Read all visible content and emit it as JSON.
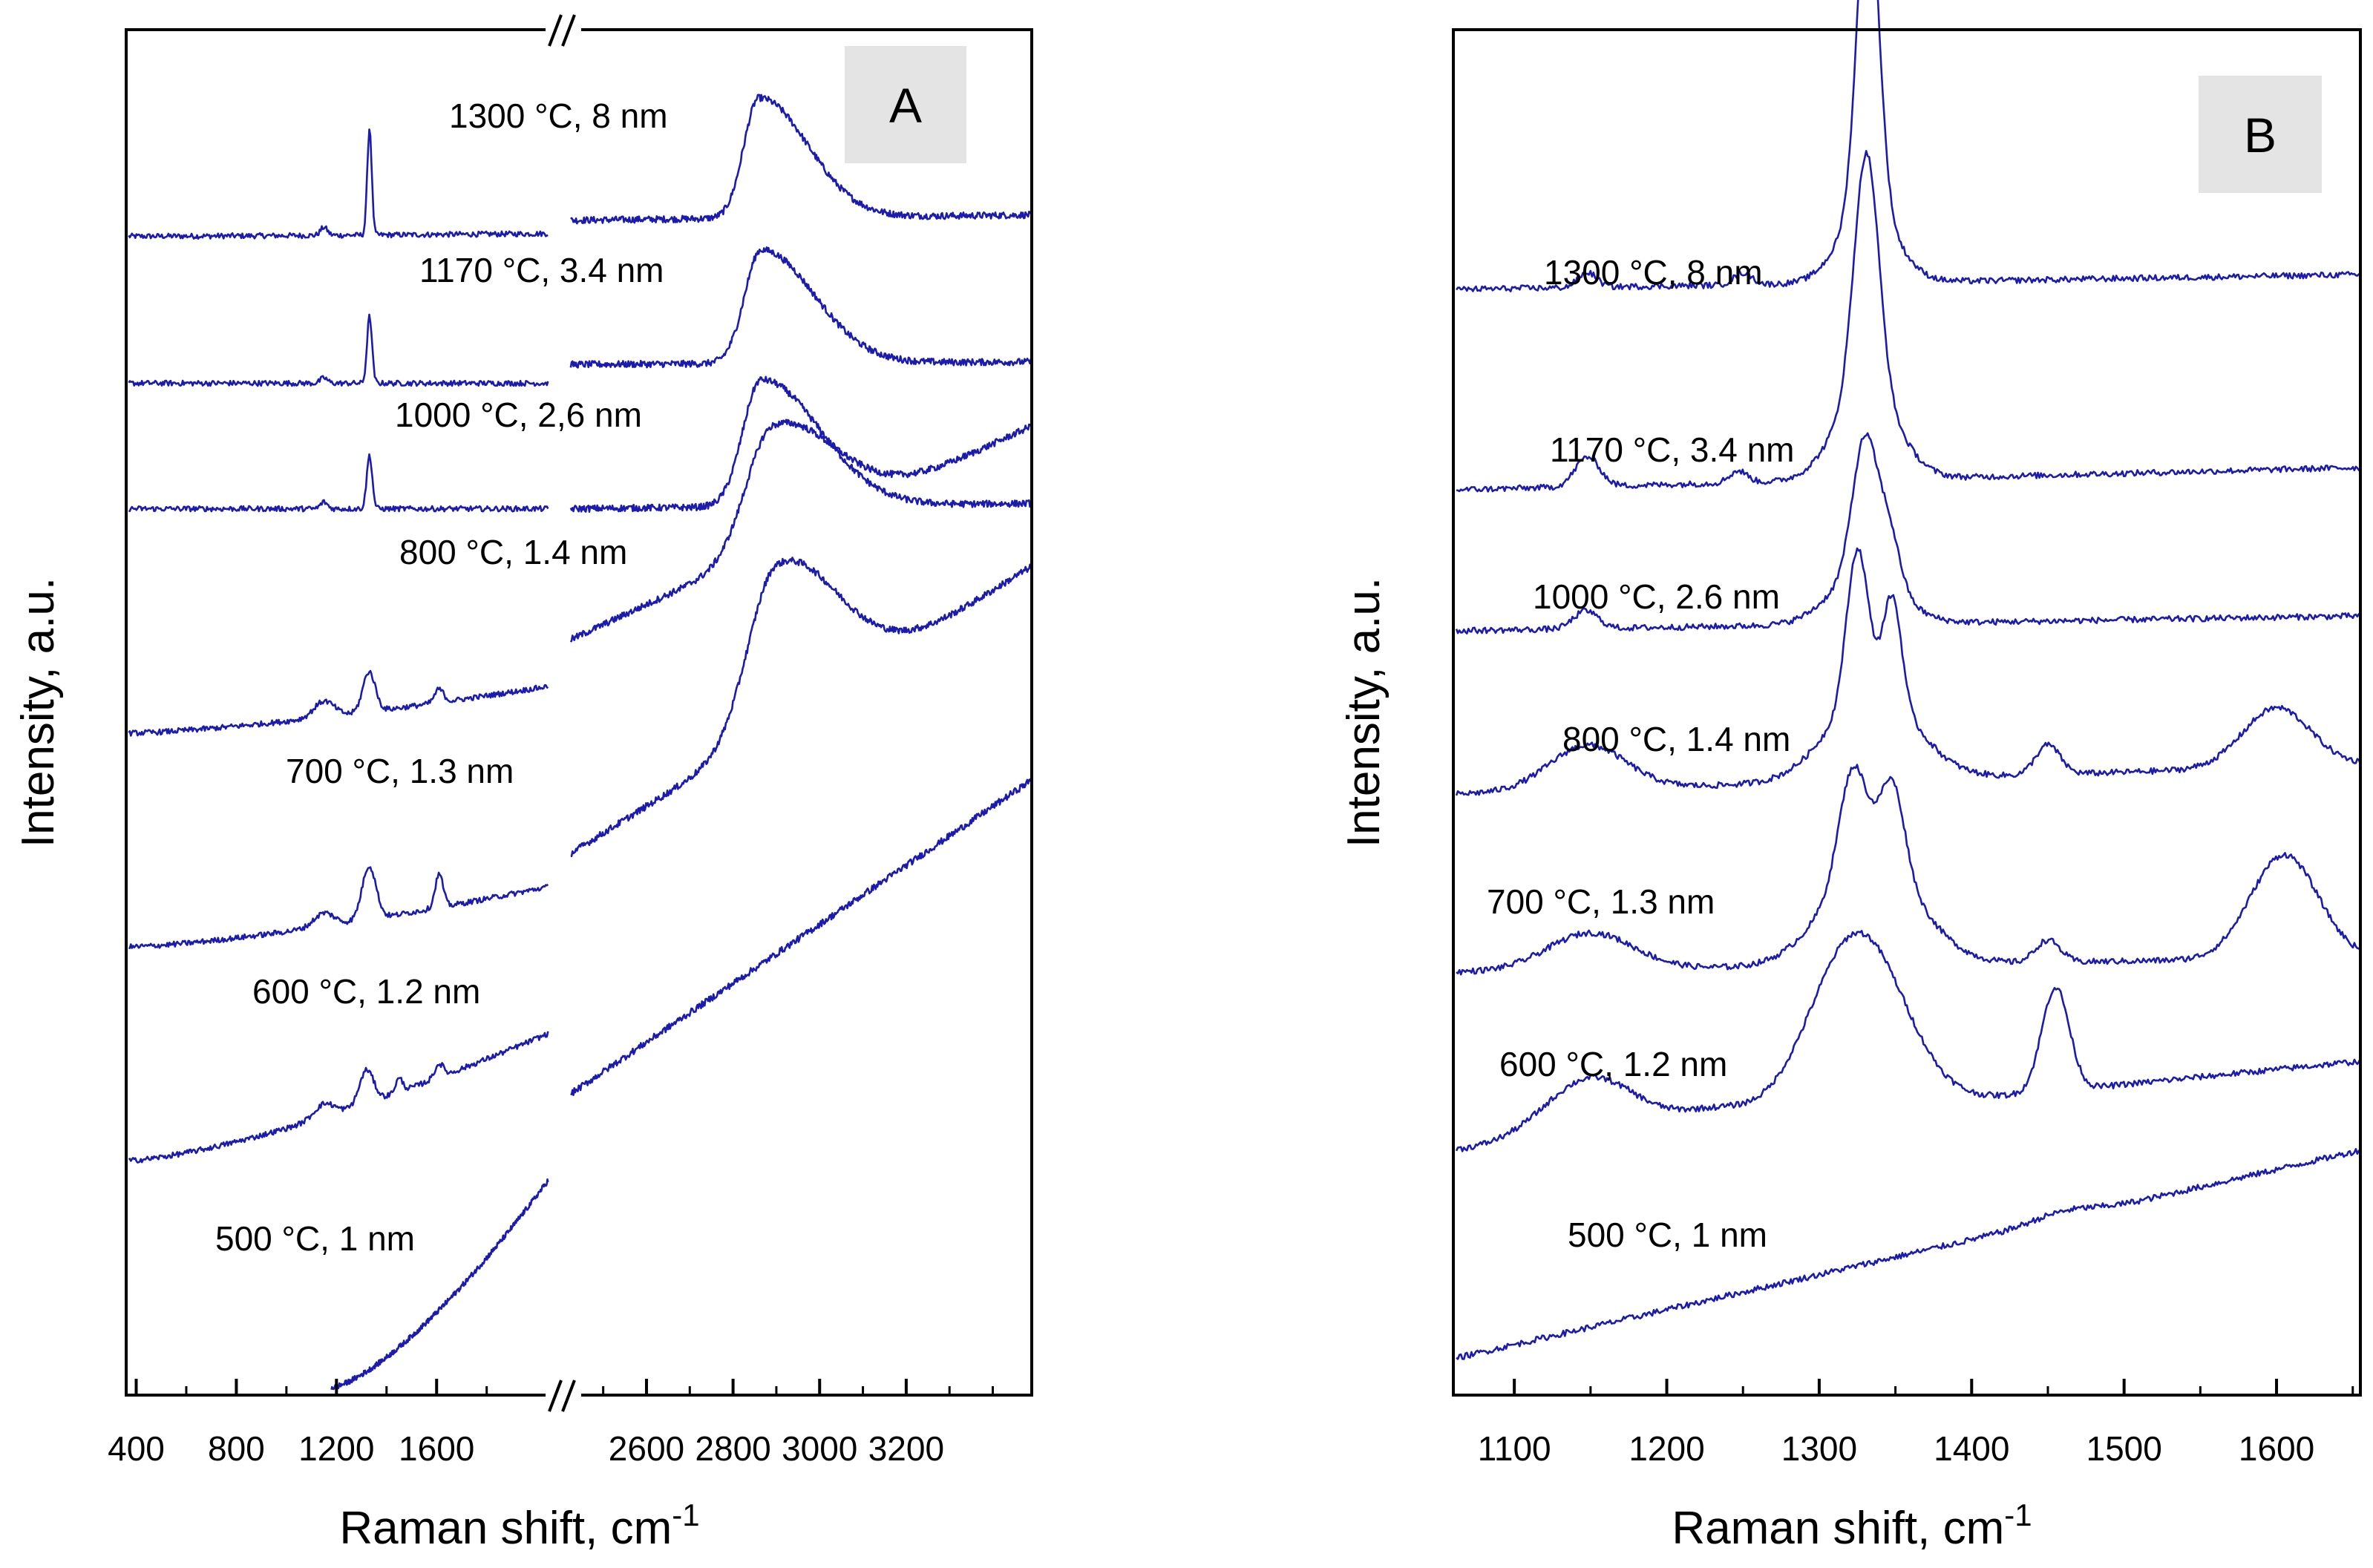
{
  "chart_data": [
    {
      "type": "line",
      "panel_label": "A",
      "xlabel": "Raman shift, cm",
      "xlabel_sup": "-1",
      "ylabel": "Intensity, a.u.",
      "axis_break": {
        "from": 2050,
        "to": 2420
      },
      "xlim": [
        360,
        3490
      ],
      "xticks": [
        400,
        800,
        1200,
        1600,
        2600,
        2800,
        3000,
        3200
      ],
      "xtick_labels": [
        "400",
        "800",
        "1200",
        "1600",
        "2600",
        "2800",
        "3000",
        "3200"
      ],
      "yticks_shown": false,
      "series": [
        {
          "name": "1300 °C, 8 nm",
          "label": "1300 °C, 8 nm",
          "offset": 0.86,
          "peaks_left": [
            {
              "x": 1332,
              "h": 0.08,
              "w": 9
            },
            {
              "x": 1150,
              "h": 0.006,
              "w": 14
            }
          ],
          "baseline_left": [
            0.862,
            0.864
          ],
          "right_start": 0.874,
          "right_end": 0.878,
          "peaks_right": [
            {
              "x": 2860,
              "h": 0.09,
              "w": 35,
              "skew": 1
            }
          ]
        },
        {
          "name": "1170 °C, 3.4 nm",
          "label": "1170 °C, 3.4 nm",
          "offset": 0.75,
          "peaks_left": [
            {
              "x": 1332,
              "h": 0.05,
              "w": 10
            },
            {
              "x": 1150,
              "h": 0.004,
              "w": 14
            }
          ],
          "baseline_left": [
            0.752,
            0.752
          ],
          "right_start": 0.766,
          "right_end": 0.768,
          "peaks_right": [
            {
              "x": 2865,
              "h": 0.085,
              "w": 38,
              "skew": 1
            }
          ]
        },
        {
          "name": "1000 °C, 2,6 nm",
          "label": "1000 °C, 2,6 nm",
          "offset": 0.66,
          "peaks_left": [
            {
              "x": 1332,
              "h": 0.04,
              "w": 11
            },
            {
              "x": 1150,
              "h": 0.005,
              "w": 14
            }
          ],
          "baseline_left": [
            0.658,
            0.658
          ],
          "right_start": 0.658,
          "right_end": 0.662,
          "peaks_right": [
            {
              "x": 2865,
              "h": 0.095,
              "w": 42,
              "skew": 1
            }
          ]
        },
        {
          "name": "800 °C, 1.4 nm",
          "label": "800 °C, 1.4 nm",
          "offset": 0.49,
          "peaks_left": [
            {
              "x": 1330,
              "h": 0.03,
              "w": 25
            },
            {
              "x": 1610,
              "h": 0.01,
              "w": 18
            },
            {
              "x": 1150,
              "h": 0.012,
              "w": 40
            }
          ],
          "baseline_left": [
            0.49,
            0.525
          ],
          "right_start": 0.56,
          "right_end": 0.72,
          "peaks_right": [
            {
              "x": 2890,
              "h": 0.09,
              "w": 60,
              "skew": 0.6
            }
          ]
        },
        {
          "name": "700 °C, 1.3 nm",
          "label": "700 °C, 1.3 nm",
          "offset": 0.33,
          "peaks_left": [
            {
              "x": 1330,
              "h": 0.04,
              "w": 28
            },
            {
              "x": 1610,
              "h": 0.025,
              "w": 16
            },
            {
              "x": 1150,
              "h": 0.01,
              "w": 40
            }
          ],
          "baseline_left": [
            0.33,
            0.375
          ],
          "right_start": 0.4,
          "right_end": 0.615,
          "peaks_right": [
            {
              "x": 2900,
              "h": 0.12,
              "w": 65,
              "skew": 0.5
            }
          ]
        },
        {
          "name": "600 °C, 1.2 nm",
          "label": "600 °C, 1.2 nm",
          "offset": 0.17,
          "peaks_left": [
            {
              "x": 1320,
              "h": 0.025,
              "w": 28
            },
            {
              "x": 1610,
              "h": 0.01,
              "w": 18
            },
            {
              "x": 1450,
              "h": 0.01,
              "w": 15
            },
            {
              "x": 1150,
              "h": 0.01,
              "w": 40
            }
          ],
          "baseline_left": [
            0.17,
            0.265
          ],
          "right_start": 0.22,
          "right_end": 0.455,
          "peaks_right": []
        },
        {
          "name": "500 °C, 1 nm",
          "label": "500 °C, 1 nm",
          "offset": 0.0,
          "peaks_left": [],
          "baseline_left": [
            0.0,
            0.155
          ],
          "left_start_x": 1180,
          "right_start": null,
          "right_end": null,
          "peaks_right": []
        }
      ]
    },
    {
      "type": "line",
      "panel_label": "B",
      "xlabel": "Raman shift, cm",
      "xlabel_sup": "-1",
      "ylabel": "Intensity, a.u.",
      "xlim": [
        1060,
        1655
      ],
      "xticks": [
        1100,
        1200,
        1300,
        1400,
        1500,
        1600
      ],
      "xtick_labels": [
        "1100",
        "1200",
        "1300",
        "1400",
        "1500",
        "1600"
      ],
      "yticks_shown": false,
      "series": [
        {
          "name": "1300 °C, 8 nm",
          "label": "1300 °C, 8 nm",
          "baseline": [
            0.72,
            0.73
          ],
          "peaks": [
            {
              "x": 1332,
              "h": 0.22,
              "w": 7
            },
            {
              "x": 1332,
              "h": 0.05,
              "w": 18
            },
            {
              "x": 1148,
              "h": 0.01,
              "w": 6
            },
            {
              "x": 1250,
              "h": 0.008,
              "w": 6
            }
          ]
        },
        {
          "name": "1170 °C, 3.4 nm",
          "label": "1170 °C, 3.4 nm",
          "baseline": [
            0.585,
            0.6
          ],
          "peaks": [
            {
              "x": 1331,
              "h": 0.16,
              "w": 8
            },
            {
              "x": 1331,
              "h": 0.06,
              "w": 20
            },
            {
              "x": 1148,
              "h": 0.02,
              "w": 8
            },
            {
              "x": 1247,
              "h": 0.008,
              "w": 6
            }
          ]
        },
        {
          "name": "1000 °C, 2.6 nm",
          "label": "1000 °C, 2.6 nm",
          "baseline": [
            0.49,
            0.5
          ],
          "peaks": [
            {
              "x": 1330,
              "h": 0.09,
              "w": 8
            },
            {
              "x": 1346,
              "h": 0.035,
              "w": 7
            },
            {
              "x": 1330,
              "h": 0.035,
              "w": 22
            },
            {
              "x": 1147,
              "h": 0.012,
              "w": 8
            }
          ]
        },
        {
          "name": "800 °C, 1.4 nm",
          "label": "800 °C, 1.4 nm",
          "baseline": [
            0.38,
            0.4
          ],
          "peaks": [
            {
              "x": 1325,
              "h": 0.1,
              "w": 7
            },
            {
              "x": 1348,
              "h": 0.07,
              "w": 6
            },
            {
              "x": 1335,
              "h": 0.06,
              "w": 28
            },
            {
              "x": 1600,
              "h": 0.04,
              "w": 22
            },
            {
              "x": 1450,
              "h": 0.02,
              "w": 8
            },
            {
              "x": 1148,
              "h": 0.03,
              "w": 25
            }
          ]
        },
        {
          "name": "700 °C, 1.3 nm",
          "label": "700 °C, 1.3 nm",
          "baseline": [
            0.26,
            0.27
          ],
          "peaks": [
            {
              "x": 1322,
              "h": 0.07,
              "w": 9
            },
            {
              "x": 1348,
              "h": 0.06,
              "w": 8
            },
            {
              "x": 1335,
              "h": 0.07,
              "w": 30
            },
            {
              "x": 1605,
              "h": 0.07,
              "w": 22
            },
            {
              "x": 1450,
              "h": 0.015,
              "w": 8
            },
            {
              "x": 1150,
              "h": 0.025,
              "w": 28
            }
          ]
        },
        {
          "name": "600 °C, 1.2 nm",
          "label": "600 °C, 1.2 nm",
          "baseline": [
            0.14,
            0.2
          ],
          "peaks": [
            {
              "x": 1325,
              "h": 0.12,
              "w": 30
            },
            {
              "x": 1455,
              "h": 0.07,
              "w": 9
            },
            {
              "x": 1150,
              "h": 0.04,
              "w": 30
            },
            {
              "x": 1230,
              "h": 0.01,
              "w": 25
            }
          ]
        },
        {
          "name": "500 °C, 1 nm",
          "label": "500 °C, 1 nm",
          "baseline": [
            0.0,
            0.14
          ],
          "peaks": [
            {
              "x": 1460,
              "h": 0.005,
              "w": 20
            }
          ]
        }
      ]
    }
  ]
}
